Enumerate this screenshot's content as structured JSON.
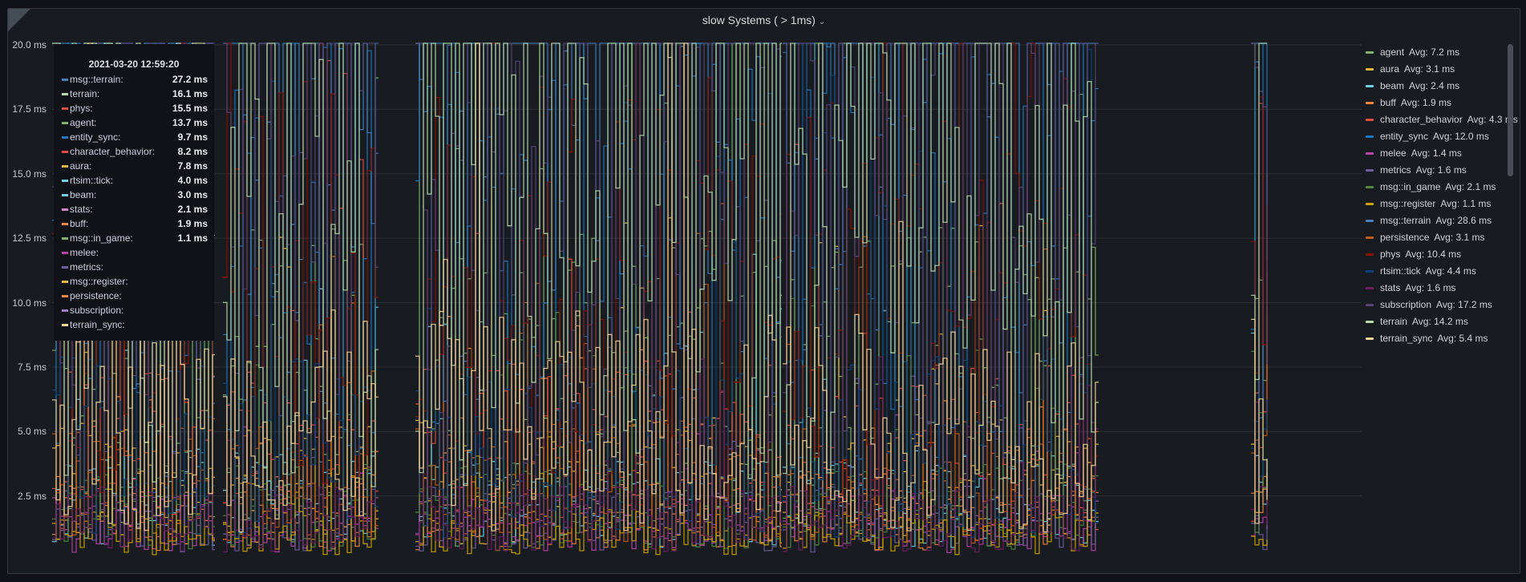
{
  "panel": {
    "title": "slow Systems ( > 1ms)",
    "title_menu": "chevron-down-icon"
  },
  "chart_data": {
    "type": "line",
    "title": "slow Systems ( > 1ms)",
    "y_unit": "ms",
    "ylim": [
      0,
      20
    ],
    "yticks": [
      "2.5 ms",
      "5.0 ms",
      "7.5 ms",
      "10.0 ms",
      "12.5 ms",
      "15.0 ms",
      "17.5 ms",
      "20.0 ms"
    ],
    "grid": true,
    "legend_placement": "right",
    "series": [
      {
        "name": "agent",
        "avg": "Avg: 7.2 ms",
        "color": "#7eb26d",
        "mean": 7.2
      },
      {
        "name": "aura",
        "avg": "Avg: 3.1 ms",
        "color": "#eab839",
        "mean": 3.1
      },
      {
        "name": "beam",
        "avg": "Avg: 2.4 ms",
        "color": "#6ed0e0",
        "mean": 2.4
      },
      {
        "name": "buff",
        "avg": "Avg: 1.9 ms",
        "color": "#ef843c",
        "mean": 1.9
      },
      {
        "name": "character_behavior",
        "avg": "Avg: 4.3 ms",
        "color": "#e24d42",
        "mean": 4.3
      },
      {
        "name": "entity_sync",
        "avg": "Avg: 12.0 ms",
        "color": "#1f78c1",
        "mean": 12.0
      },
      {
        "name": "melee",
        "avg": "Avg: 1.4 ms",
        "color": "#ba43a9",
        "mean": 1.4
      },
      {
        "name": "metrics",
        "avg": "Avg: 1.6 ms",
        "color": "#705da0",
        "mean": 1.6
      },
      {
        "name": "msg::in_game",
        "avg": "Avg: 2.1 ms",
        "color": "#508642",
        "mean": 2.1
      },
      {
        "name": "msg::register",
        "avg": "Avg: 1.1 ms",
        "color": "#cca300",
        "mean": 1.1
      },
      {
        "name": "msg::terrain",
        "avg": "Avg: 28.6 ms",
        "color": "#447ebc",
        "mean": 28.6
      },
      {
        "name": "persistence",
        "avg": "Avg: 3.1 ms",
        "color": "#c15c17",
        "mean": 3.1
      },
      {
        "name": "phys",
        "avg": "Avg: 10.4 ms",
        "color": "#890f02",
        "mean": 10.4
      },
      {
        "name": "rtsim::tick",
        "avg": "Avg: 4.4 ms",
        "color": "#0a437c",
        "mean": 4.4
      },
      {
        "name": "stats",
        "avg": "Avg: 1.6 ms",
        "color": "#6d1f62",
        "mean": 1.6
      },
      {
        "name": "subscription",
        "avg": "Avg: 17.2 ms",
        "color": "#584477",
        "mean": 17.2
      },
      {
        "name": "terrain",
        "avg": "Avg: 14.2 ms",
        "color": "#b7dbab",
        "mean": 14.2
      },
      {
        "name": "terrain_sync",
        "avg": "Avg: 5.4 ms",
        "color": "#f4d598",
        "mean": 5.4
      }
    ]
  },
  "tooltip": {
    "time": "2021-03-20 12:59:20",
    "rows": [
      {
        "label": "msg::terrain:",
        "value": "27.2 ms",
        "color": "#447ebc"
      },
      {
        "label": "terrain:",
        "value": "16.1 ms",
        "color": "#b7dbab"
      },
      {
        "label": "phys:",
        "value": "15.5 ms",
        "color": "#e24d42"
      },
      {
        "label": "agent:",
        "value": "13.7 ms",
        "color": "#7eb26d"
      },
      {
        "label": "entity_sync:",
        "value": "9.7 ms",
        "color": "#1f78c1"
      },
      {
        "label": "character_behavior:",
        "value": "8.2 ms",
        "color": "#e24d42"
      },
      {
        "label": "aura:",
        "value": "7.8 ms",
        "color": "#eab839"
      },
      {
        "label": "rtsim::tick:",
        "value": "4.0 ms",
        "color": "#6ed0e0"
      },
      {
        "label": "beam:",
        "value": "3.0 ms",
        "color": "#6ed0e0"
      },
      {
        "label": "stats:",
        "value": "2.1 ms",
        "color": "#d683ce"
      },
      {
        "label": "buff:",
        "value": "1.9 ms",
        "color": "#ef843c"
      },
      {
        "label": "msg::in_game:",
        "value": "1.1 ms",
        "color": "#7eb26d"
      },
      {
        "label": "melee:",
        "value": "",
        "color": "#ba43a9"
      },
      {
        "label": "metrics:",
        "value": "",
        "color": "#705da0"
      },
      {
        "label": "msg::register:",
        "value": "",
        "color": "#eab839"
      },
      {
        "label": "persistence:",
        "value": "",
        "color": "#ef843c"
      },
      {
        "label": "subscription:",
        "value": "",
        "color": "#a07ec9"
      },
      {
        "label": "terrain_sync:",
        "value": "",
        "color": "#f4d598"
      }
    ]
  }
}
